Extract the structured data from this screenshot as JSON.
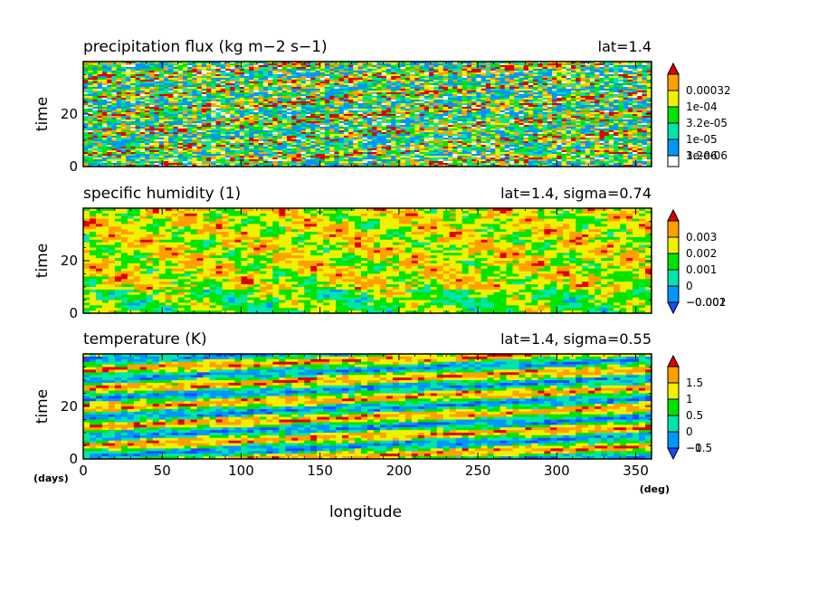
{
  "chart_data": [
    {
      "type": "heatmap",
      "title": "precipitation flux (kg m−2 s−1)",
      "subtitle": "lat=1.4",
      "ylabel": "time",
      "xlabel": "",
      "xlim": [
        0,
        360
      ],
      "ylim": [
        0,
        40
      ],
      "y_ticks": [
        0,
        20
      ],
      "x_ticks": [
        0,
        50,
        100,
        150,
        200,
        250,
        300,
        350
      ],
      "x_tick_labels_shown": false,
      "pattern": "noisy",
      "colorbar": {
        "labels": [
          "0.00032",
          "1e-04",
          "3.2e-05",
          "1e-05",
          "3.2e-06",
          "1e-06"
        ],
        "colors": [
          "#ffffff",
          "#0096ff",
          "#00e5aa",
          "#00e400",
          "#f0f000",
          "#ffa000",
          "#e00000"
        ],
        "extend": "max"
      }
    },
    {
      "type": "heatmap",
      "title": "specific humidity (1)",
      "subtitle": "lat=1.4, sigma=0.74",
      "ylabel": "time",
      "xlabel": "",
      "xlim": [
        0,
        360
      ],
      "ylim": [
        0,
        40
      ],
      "y_ticks": [
        0,
        20
      ],
      "x_ticks": [
        0,
        50,
        100,
        150,
        200,
        250,
        300,
        350
      ],
      "x_tick_labels_shown": false,
      "pattern": "smooth",
      "colorbar": {
        "labels": [
          "0.003",
          "0.002",
          "0.001",
          "0",
          "−0.001",
          "−0.002"
        ],
        "colors": [
          "#1a4cff",
          "#0096ff",
          "#00e5aa",
          "#00e400",
          "#f0f000",
          "#ffa000",
          "#e00000"
        ],
        "extend": "both"
      }
    },
    {
      "type": "heatmap",
      "title": "temperature (K)",
      "subtitle": "lat=1.4, sigma=0.55",
      "ylabel": "time",
      "xlabel": "longitude",
      "x_unit": "(deg)",
      "y_unit": "(days)",
      "xlim": [
        0,
        360
      ],
      "ylim": [
        0,
        40
      ],
      "y_ticks": [
        0,
        20
      ],
      "x_ticks": [
        0,
        50,
        100,
        150,
        200,
        250,
        300,
        350
      ],
      "x_tick_labels_shown": true,
      "pattern": "waves",
      "colorbar": {
        "labels": [
          "1.5",
          "1",
          "0.5",
          "0",
          "−0.5",
          "−1"
        ],
        "colors": [
          "#1a4cff",
          "#0096ff",
          "#00e5aa",
          "#00e400",
          "#f0f000",
          "#ffa000",
          "#e00000"
        ],
        "extend": "both"
      }
    }
  ]
}
